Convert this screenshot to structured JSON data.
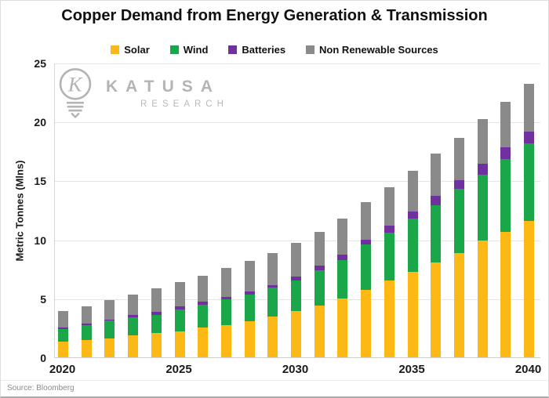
{
  "source": "Source: Bloomberg",
  "watermark": {
    "icon": "lightbulb-k-logo",
    "brand": "KATUSA",
    "sub": "RESEARCH"
  },
  "chart_data": {
    "type": "bar",
    "stacked": true,
    "title": "Copper Demand from Energy Generation & Transmission",
    "xlabel": "",
    "ylabel": "Metric Tonnes (Mlns)",
    "ylim": [
      0,
      25
    ],
    "yticks": [
      0,
      5,
      10,
      15,
      20,
      25
    ],
    "grid": true,
    "legend_position": "top",
    "xtick_labels": [
      "2020",
      "2025",
      "2030",
      "2035",
      "2040"
    ],
    "xtick_every": 5,
    "categories": [
      2020,
      2021,
      2022,
      2023,
      2024,
      2025,
      2026,
      2027,
      2028,
      2029,
      2030,
      2031,
      2032,
      2033,
      2034,
      2035,
      2036,
      2037,
      2038,
      2039,
      2040
    ],
    "series": [
      {
        "name": "Solar",
        "color": "#FCB915",
        "values": [
          1.3,
          1.45,
          1.6,
          1.85,
          2.05,
          2.2,
          2.5,
          2.75,
          3.05,
          3.45,
          3.9,
          4.4,
          5.0,
          5.75,
          6.55,
          7.25,
          8.05,
          8.85,
          9.9,
          10.65,
          11.6
        ]
      },
      {
        "name": "Wind",
        "color": "#1CA64A",
        "values": [
          1.1,
          1.3,
          1.5,
          1.55,
          1.55,
          1.85,
          1.95,
          2.2,
          2.25,
          2.45,
          2.65,
          3.0,
          3.25,
          3.8,
          4.05,
          4.55,
          4.85,
          5.45,
          5.6,
          6.2,
          6.55
        ]
      },
      {
        "name": "Batteries",
        "color": "#7030A0",
        "values": [
          0.1,
          0.1,
          0.1,
          0.2,
          0.25,
          0.25,
          0.25,
          0.2,
          0.3,
          0.25,
          0.3,
          0.35,
          0.45,
          0.4,
          0.6,
          0.6,
          0.8,
          0.7,
          0.9,
          0.95,
          1.0
        ]
      },
      {
        "name": "Non Renewable Sources",
        "color": "#8A8A8A",
        "values": [
          1.4,
          1.5,
          1.65,
          1.7,
          2.0,
          2.1,
          2.25,
          2.4,
          2.55,
          2.7,
          2.85,
          2.9,
          3.1,
          3.2,
          3.2,
          3.4,
          3.6,
          3.6,
          3.8,
          3.9,
          4.05
        ]
      }
    ]
  }
}
